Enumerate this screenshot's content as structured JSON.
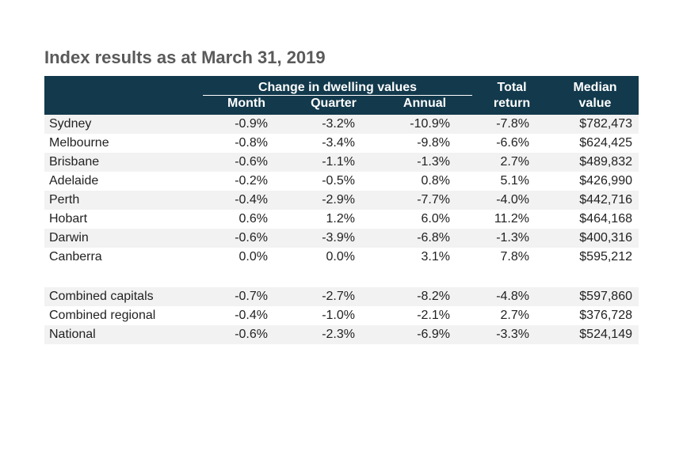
{
  "title": "Index results as at March 31, 2019",
  "table": {
    "type": "table",
    "header_bg": "#12394c",
    "header_text_color": "#ffffff",
    "row_odd_bg": "#f2f2f2",
    "row_even_bg": "#ffffff",
    "text_color": "#222222",
    "title_color": "#5a5a5a",
    "group_header": "Change in dwelling values",
    "columns": {
      "label": "",
      "month": "Month",
      "quarter": "Quarter",
      "annual": "Annual",
      "total_return_top": "Total",
      "total_return_bottom": "return",
      "median_top": "Median",
      "median_bottom": "value"
    },
    "rows": [
      {
        "label": "Sydney",
        "month": "-0.9%",
        "quarter": "-3.2%",
        "annual": "-10.9%",
        "total_return": "-7.8%",
        "median": "$782,473"
      },
      {
        "label": "Melbourne",
        "month": "-0.8%",
        "quarter": "-3.4%",
        "annual": "-9.8%",
        "total_return": "-6.6%",
        "median": "$624,425"
      },
      {
        "label": "Brisbane",
        "month": "-0.6%",
        "quarter": "-1.1%",
        "annual": "-1.3%",
        "total_return": "2.7%",
        "median": "$489,832"
      },
      {
        "label": "Adelaide",
        "month": "-0.2%",
        "quarter": "-0.5%",
        "annual": "0.8%",
        "total_return": "5.1%",
        "median": "$426,990"
      },
      {
        "label": "Perth",
        "month": "-0.4%",
        "quarter": "-2.9%",
        "annual": "-7.7%",
        "total_return": "-4.0%",
        "median": "$442,716"
      },
      {
        "label": "Hobart",
        "month": "0.6%",
        "quarter": "1.2%",
        "annual": "6.0%",
        "total_return": "11.2%",
        "median": "$464,168"
      },
      {
        "label": "Darwin",
        "month": "-0.6%",
        "quarter": "-3.9%",
        "annual": "-6.8%",
        "total_return": "-1.3%",
        "median": "$400,316"
      },
      {
        "label": "Canberra",
        "month": "0.0%",
        "quarter": "0.0%",
        "annual": "3.1%",
        "total_return": "7.8%",
        "median": "$595,212"
      }
    ],
    "summary_rows": [
      {
        "label": "Combined capitals",
        "month": "-0.7%",
        "quarter": "-2.7%",
        "annual": "-8.2%",
        "total_return": "-4.8%",
        "median": "$597,860"
      },
      {
        "label": "Combined regional",
        "month": "-0.4%",
        "quarter": "-1.0%",
        "annual": "-2.1%",
        "total_return": "2.7%",
        "median": "$376,728"
      },
      {
        "label": "National",
        "month": "-0.6%",
        "quarter": "-2.3%",
        "annual": "-6.9%",
        "total_return": "-3.3%",
        "median": "$524,149"
      }
    ]
  }
}
